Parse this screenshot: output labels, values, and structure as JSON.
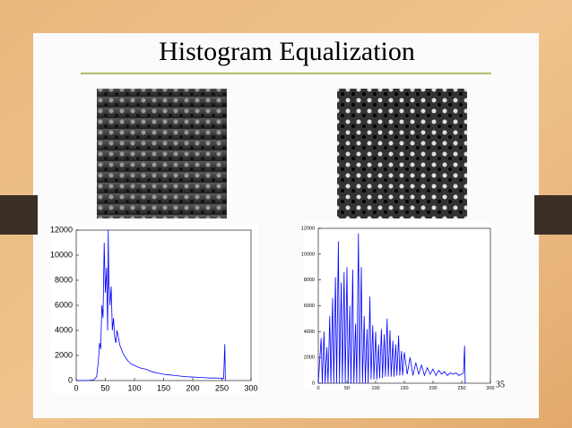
{
  "slide": {
    "title": "Histogram Equalization",
    "page_number": "35"
  },
  "chart_data": [
    {
      "type": "line",
      "color": "#0000ff",
      "x": [
        0,
        10,
        20,
        30,
        35,
        38,
        40,
        42,
        44,
        46,
        48,
        50,
        52,
        54,
        55,
        56,
        58,
        60,
        62,
        64,
        66,
        68,
        70,
        75,
        80,
        85,
        90,
        95,
        100,
        110,
        120,
        130,
        140,
        150,
        160,
        170,
        180,
        190,
        200,
        210,
        220,
        230,
        240,
        250,
        253,
        255,
        256
      ],
      "values": [
        0,
        0,
        0,
        50,
        300,
        1500,
        3000,
        2500,
        6000,
        5000,
        11000,
        7000,
        9000,
        4000,
        12000,
        8000,
        6000,
        7500,
        4000,
        5000,
        3500,
        3000,
        4000,
        2800,
        2200,
        1800,
        1500,
        1300,
        1200,
        1000,
        900,
        700,
        600,
        500,
        450,
        400,
        350,
        300,
        280,
        250,
        230,
        200,
        200,
        180,
        150,
        2900,
        0
      ],
      "xlim": [
        0,
        300
      ],
      "xticks": [
        0,
        50,
        100,
        150,
        200,
        250,
        300
      ],
      "ylim": [
        0,
        12000
      ],
      "yticks": [
        0,
        2000,
        4000,
        6000,
        8000,
        10000,
        12000
      ]
    },
    {
      "type": "line",
      "color": "#0000ff",
      "x": [
        0,
        5,
        7,
        10,
        12,
        15,
        17,
        20,
        22,
        25,
        27,
        30,
        32,
        35,
        37,
        40,
        42,
        45,
        47,
        50,
        52,
        55,
        57,
        60,
        62,
        65,
        67,
        70,
        72,
        75,
        77,
        80,
        82,
        85,
        87,
        90,
        92,
        95,
        97,
        100,
        102,
        105,
        107,
        110,
        112,
        115,
        117,
        120,
        122,
        125,
        127,
        130,
        132,
        135,
        137,
        140,
        142,
        145,
        147,
        150,
        155,
        160,
        165,
        170,
        175,
        180,
        185,
        190,
        195,
        200,
        205,
        210,
        215,
        220,
        225,
        230,
        235,
        240,
        245,
        250,
        253,
        255,
        256
      ],
      "values": [
        0,
        3500,
        0,
        4000,
        0,
        2800,
        0,
        5200,
        0,
        6600,
        0,
        8200,
        0,
        11000,
        0,
        7800,
        0,
        8600,
        0,
        9000,
        0,
        6000,
        0,
        8800,
        0,
        4600,
        0,
        11600,
        0,
        9000,
        0,
        5200,
        0,
        4200,
        0,
        6700,
        300,
        4500,
        300,
        4000,
        300,
        3000,
        400,
        4200,
        400,
        3800,
        500,
        5000,
        500,
        4100,
        500,
        3300,
        500,
        3000,
        600,
        3700,
        600,
        2500,
        600,
        2400,
        700,
        2000,
        600,
        1600,
        700,
        1400,
        600,
        1200,
        700,
        1100,
        600,
        1000,
        700,
        900,
        600,
        800,
        700,
        800,
        600,
        700,
        800,
        2900,
        0
      ],
      "xlim": [
        0,
        300
      ],
      "xticks": [
        0,
        50,
        100,
        150,
        200,
        250,
        300
      ],
      "ylim": [
        0,
        12000
      ],
      "yticks": [
        0,
        2000,
        4000,
        6000,
        8000,
        10000,
        12000
      ]
    }
  ]
}
